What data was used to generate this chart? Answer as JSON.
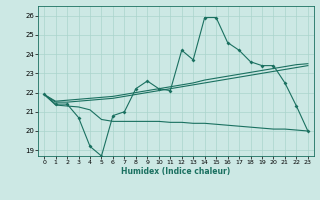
{
  "title": "",
  "xlabel": "Humidex (Indice chaleur)",
  "bg_color": "#cce8e4",
  "grid_color": "#aad4cc",
  "line_color": "#1a7060",
  "xlim": [
    -0.5,
    23.5
  ],
  "ylim": [
    18.7,
    26.5
  ],
  "xticks": [
    0,
    1,
    2,
    3,
    4,
    5,
    6,
    7,
    8,
    9,
    10,
    11,
    12,
    13,
    14,
    15,
    16,
    17,
    18,
    19,
    20,
    21,
    22,
    23
  ],
  "yticks": [
    19,
    20,
    21,
    22,
    23,
    24,
    25,
    26
  ],
  "main_y": [
    21.9,
    21.4,
    21.4,
    20.7,
    19.2,
    18.7,
    20.8,
    21.0,
    22.2,
    22.6,
    22.2,
    22.1,
    24.2,
    23.7,
    25.9,
    25.9,
    24.6,
    24.2,
    23.6,
    23.4,
    23.4,
    22.5,
    21.3,
    20.0
  ],
  "upper_y": [
    21.9,
    21.55,
    21.6,
    21.65,
    21.7,
    21.75,
    21.8,
    21.9,
    22.0,
    22.1,
    22.2,
    22.3,
    22.4,
    22.5,
    22.65,
    22.75,
    22.85,
    22.95,
    23.05,
    23.15,
    23.25,
    23.35,
    23.45,
    23.5
  ],
  "mid_y": [
    21.9,
    21.5,
    21.5,
    21.55,
    21.6,
    21.65,
    21.7,
    21.8,
    21.9,
    22.0,
    22.1,
    22.2,
    22.3,
    22.4,
    22.5,
    22.6,
    22.7,
    22.8,
    22.9,
    23.0,
    23.1,
    23.2,
    23.3,
    23.4
  ],
  "lower_y": [
    21.9,
    21.35,
    21.3,
    21.25,
    21.1,
    20.6,
    20.5,
    20.5,
    20.5,
    20.5,
    20.5,
    20.45,
    20.45,
    20.4,
    20.4,
    20.35,
    20.3,
    20.25,
    20.2,
    20.15,
    20.1,
    20.1,
    20.05,
    20.0
  ]
}
